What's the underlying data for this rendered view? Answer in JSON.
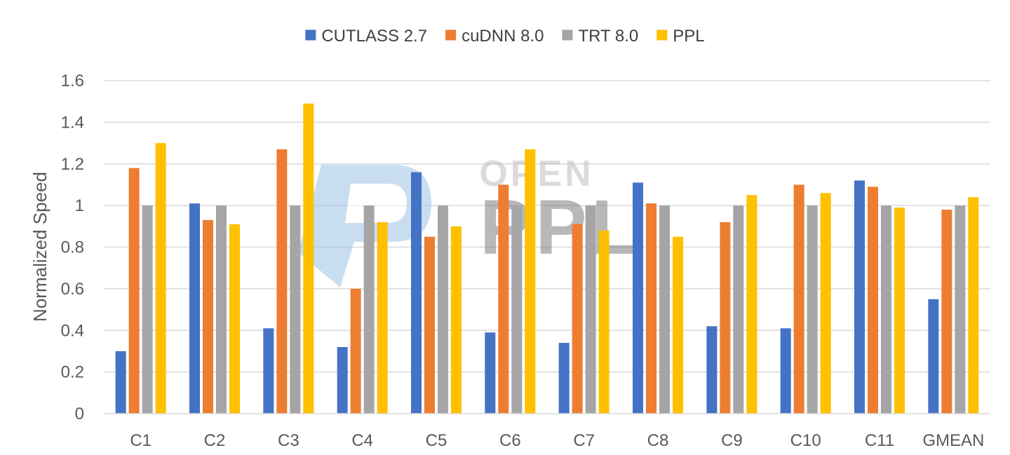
{
  "chart_data": {
    "type": "bar",
    "title": "",
    "xlabel": "",
    "ylabel": "Normalized Speed",
    "ylim": [
      0,
      1.6
    ],
    "yticks": [
      "0",
      "0.2",
      "0.4",
      "0.6",
      "0.8",
      "1",
      "1.2",
      "1.4",
      "1.6"
    ],
    "grid": true,
    "legend_position": "top",
    "categories": [
      "C1",
      "C2",
      "C3",
      "C4",
      "C5",
      "C6",
      "C7",
      "C8",
      "C9",
      "C10",
      "C11",
      "GMEAN"
    ],
    "series": [
      {
        "name": "CUTLASS 2.7",
        "color": "#4472C4",
        "values": [
          0.3,
          1.01,
          0.41,
          0.32,
          1.16,
          0.39,
          0.34,
          1.11,
          0.42,
          0.41,
          1.12,
          0.55
        ]
      },
      {
        "name": "cuDNN 8.0",
        "color": "#ED7D31",
        "values": [
          1.18,
          0.93,
          1.27,
          0.6,
          0.85,
          1.1,
          0.91,
          1.01,
          0.92,
          1.1,
          1.09,
          0.98
        ]
      },
      {
        "name": "TRT 8.0",
        "color": "#A5A5A5",
        "values": [
          1.0,
          1.0,
          1.0,
          1.0,
          1.0,
          1.0,
          1.0,
          1.0,
          1.0,
          1.0,
          1.0,
          1.0
        ]
      },
      {
        "name": "PPL",
        "color": "#FFC000",
        "values": [
          1.3,
          0.91,
          1.49,
          0.92,
          0.9,
          1.27,
          0.88,
          0.85,
          1.05,
          1.06,
          0.99,
          1.04
        ]
      }
    ],
    "watermark": {
      "line1": "OPEN",
      "line2": "PPL"
    }
  }
}
